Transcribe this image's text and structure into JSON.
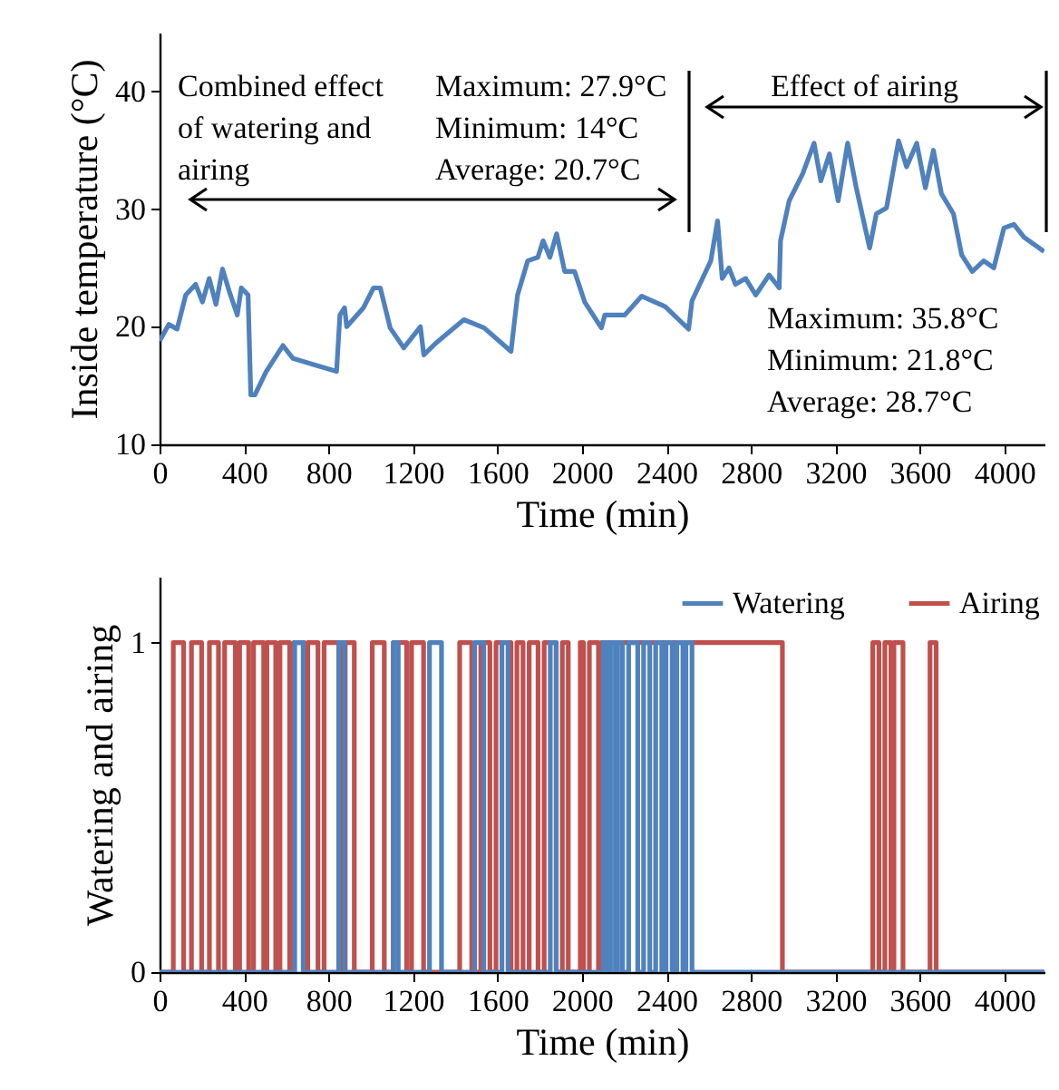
{
  "chart_data": [
    {
      "type": "line",
      "xlabel": "Time (min)",
      "ylabel": "Inside temperature (°C)",
      "xlim": [
        0,
        4190
      ],
      "xticks": [
        0,
        400,
        800,
        1200,
        1600,
        2000,
        2400,
        2800,
        3200,
        3600,
        4000
      ],
      "ylim": [
        10,
        45
      ],
      "yticks": [
        10,
        20,
        30,
        40
      ],
      "x": [
        0,
        44,
        83,
        124,
        171,
        203,
        235,
        267,
        298,
        330,
        368,
        387,
        419,
        432,
        451,
        505,
        584,
        632,
        743,
        838,
        854,
        876,
        886,
        965,
        1013,
        1045,
        1092,
        1156,
        1235,
        1251,
        1314,
        1441,
        1537,
        1664,
        1695,
        1743,
        1791,
        1816,
        1848,
        1880,
        1918,
        1965,
        2013,
        2092,
        2108,
        2203,
        2283,
        2394,
        2505,
        2521,
        2610,
        2642,
        2664,
        2696,
        2727,
        2775,
        2823,
        2886,
        2934,
        2940,
        2981,
        3045,
        3099,
        3131,
        3172,
        3213,
        3258,
        3299,
        3362,
        3394,
        3442,
        3499,
        3537,
        3585,
        3626,
        3664,
        3702,
        3759,
        3798,
        3848,
        3902,
        3950,
        3998,
        4045,
        4093,
        4188
      ],
      "series": [
        {
          "color": "#4f81bd",
          "values": [
            18.8,
            20.2,
            19.8,
            22.7,
            23.6,
            22.1,
            24.1,
            21.9,
            24.9,
            23.0,
            21.0,
            23.3,
            22.7,
            14.2,
            14.2,
            16.2,
            18.4,
            17.3,
            16.7,
            16.2,
            21.0,
            21.6,
            20.0,
            21.6,
            23.3,
            23.3,
            19.9,
            18.2,
            20.0,
            17.6,
            18.7,
            20.6,
            19.9,
            17.9,
            22.7,
            25.6,
            25.9,
            27.3,
            25.9,
            27.9,
            24.7,
            24.7,
            22.1,
            19.9,
            21.0,
            21.0,
            22.6,
            21.7,
            19.8,
            22.2,
            25.6,
            29.0,
            24.1,
            25.0,
            23.6,
            24.1,
            22.7,
            24.4,
            23.3,
            27.3,
            30.7,
            33.0,
            35.6,
            32.4,
            34.7,
            30.7,
            35.6,
            31.8,
            26.7,
            29.6,
            30.1,
            35.8,
            33.6,
            35.6,
            31.8,
            35.0,
            31.3,
            29.6,
            26.1,
            24.7,
            25.6,
            25.0,
            28.4,
            28.7,
            27.6,
            26.4
          ]
        }
      ],
      "annotations": [
        "Combined effect of watering and airing",
        "Maximum: 27.9°C",
        "Minimum: 14°C",
        "Average: 20.7°C",
        "Effect of airing",
        "Maximum: 35.8°C",
        "Minimum: 21.8°C",
        "Average: 28.7°C"
      ]
    },
    {
      "type": "step",
      "xlabel": "Time (min)",
      "ylabel": "Watering and airing",
      "xlim": [
        0,
        4190
      ],
      "xticks": [
        0,
        400,
        800,
        1200,
        1600,
        2000,
        2400,
        2800,
        3200,
        3600,
        4000
      ],
      "ylim": [
        0,
        1.2
      ],
      "yticks": [
        0,
        1
      ],
      "legend": "top right",
      "series": [
        {
          "name": "Watering",
          "color": "#4f81bd",
          "x": [
            0,
            640,
            680,
            848,
            876,
            1107,
            1130,
            1278,
            1335,
            1492,
            1535,
            1621,
            1650,
            1850,
            1878,
            2101,
            2121,
            2135,
            2158,
            2169,
            2192,
            2221,
            2264,
            2292,
            2321,
            2349,
            2378,
            2398,
            2427,
            2449,
            2478,
            2492,
            2521,
            4190
          ],
          "values": [
            0,
            1,
            0,
            1,
            0,
            1,
            0,
            1,
            0,
            1,
            0,
            1,
            0,
            1,
            0,
            1,
            0,
            1,
            0,
            1,
            0,
            1,
            0,
            1,
            0,
            1,
            0,
            1,
            0,
            1,
            0,
            1,
            0,
            0
          ]
        },
        {
          "name": "Airing",
          "color": "#c0504d",
          "x": [
            0,
            65,
            114,
            151,
            199,
            236,
            279,
            308,
            359,
            379,
            422,
            445,
            493,
            508,
            550,
            570,
            616,
            636,
            685,
            702,
            750,
            779,
            856,
            879,
            922,
            1007,
            1064,
            1107,
            1170,
            1193,
            1250,
            1421,
            1478,
            1521,
            1564,
            1593,
            1664,
            1692,
            1721,
            1750,
            1792,
            1821,
            1878,
            1907,
            1935,
            1992,
            2007,
            2035,
            2078,
            2092,
            2949,
            3377,
            3406,
            3434,
            3463,
            3477,
            3520,
            3648,
            3677,
            4190
          ],
          "values": [
            0,
            1,
            0,
            1,
            0,
            1,
            0,
            1,
            0,
            1,
            0,
            1,
            0,
            1,
            0,
            1,
            0,
            1,
            0,
            1,
            0,
            1,
            0,
            1,
            0,
            1,
            0,
            1,
            0,
            1,
            0,
            1,
            0,
            1,
            0,
            1,
            0,
            1,
            0,
            1,
            0,
            1,
            0,
            1,
            0,
            1,
            0,
            1,
            0,
            1,
            0,
            1,
            0,
            1,
            0,
            1,
            0,
            1,
            0,
            0
          ]
        }
      ]
    }
  ]
}
